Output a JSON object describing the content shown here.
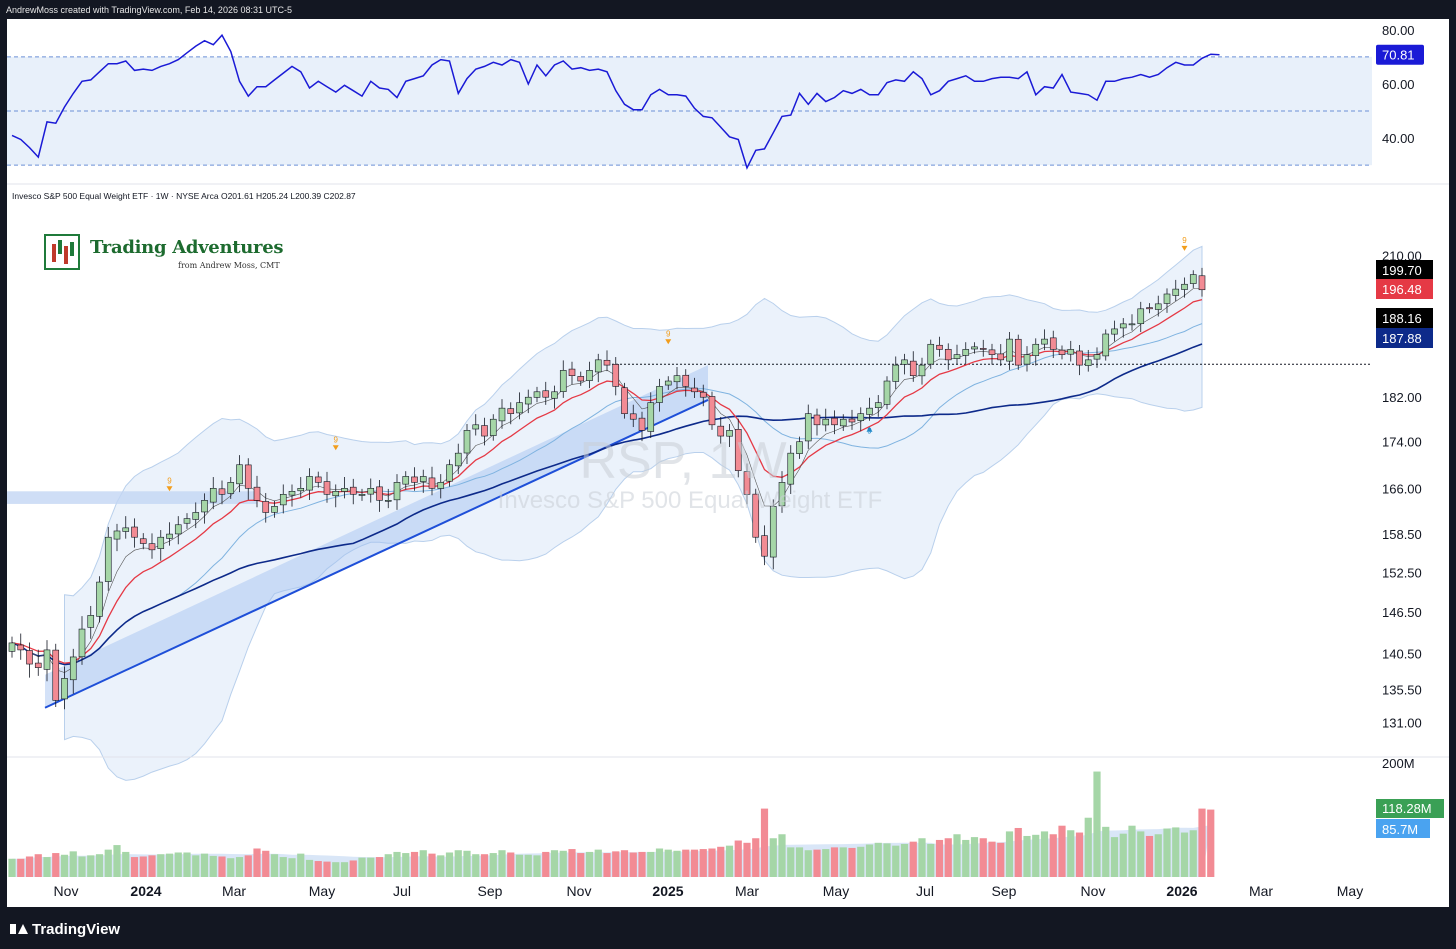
{
  "header": {
    "credit": "AndrewMoss created with TradingView.com, Feb 14, 2026 08:31 UTC-5"
  },
  "legend": {
    "symbol_line": "Invesco S&P 500 Equal Weight ETF · 1W · NYSE Arca  O201.61  H205.24  L200.39  C202.87"
  },
  "watermark": {
    "ticker": "RSP, 1W",
    "name": "Invesco S&P 500 Equal Weight ETF"
  },
  "brand": {
    "name": "Trading Adventures",
    "sub": "from Andrew Moss, CMT"
  },
  "footer": {
    "logo": "TradingView"
  },
  "colors": {
    "up": "#a5d6a7",
    "down": "#f28b94",
    "rsi": "#1a1ad6",
    "ma_red": "#e53945",
    "ma_navy": "#0d2a8a",
    "ma_light": "#7fb3e0",
    "band": "#dbe8f7",
    "trend": "#1e4fd8"
  },
  "chart_data": [
    {
      "id": "rsi",
      "type": "line",
      "y_ticks": [
        "80.00",
        "60.00",
        "40.00"
      ],
      "ylim": [
        26,
        84
      ],
      "last_value_label": "70.81",
      "levels": [
        70,
        50,
        30
      ],
      "series": [
        {
          "values": [
            41,
            39.5,
            36.5,
            33,
            46,
            45.5,
            51.5,
            56.5,
            61,
            61.5,
            64.5,
            67.5,
            67.5,
            68.5,
            65,
            65.5,
            65,
            66.5,
            67.5,
            69,
            71.5,
            74,
            76,
            74.5,
            78,
            72,
            61,
            55.5,
            59,
            59,
            61.5,
            64,
            66.5,
            64.5,
            58.5,
            61,
            59,
            57,
            59.5,
            57.5,
            55.5,
            61,
            58.5,
            58,
            55,
            61,
            62,
            63,
            67,
            69,
            68.5,
            56.5,
            62,
            65.5,
            66.5,
            68,
            67,
            69,
            68,
            60,
            67,
            63,
            67,
            68.5,
            65.5,
            66,
            65,
            65.5,
            64.5,
            57.5,
            52.5,
            50.5,
            50.5,
            56,
            58,
            56,
            56,
            55.5,
            51,
            48,
            47.5,
            44,
            40.5,
            39.5,
            29,
            35.5,
            36,
            42,
            48,
            48.5,
            56.5,
            52.5,
            56.5,
            53.5,
            55,
            57.5,
            56.5,
            58,
            56,
            56,
            60.5,
            61.5,
            61,
            64.5,
            62,
            56,
            57.5,
            61,
            62,
            63,
            61,
            61,
            62,
            62.5,
            62.5,
            62,
            64.5,
            56,
            59,
            58.5,
            63.5,
            57,
            56.5,
            56,
            54,
            61,
            61,
            62,
            62.5,
            63.5,
            62.5,
            63.5,
            66,
            68,
            67,
            67,
            69.5,
            71,
            70.81
          ]
        }
      ]
    },
    {
      "id": "price",
      "type": "candlestick",
      "y_ticks": [
        "210.00",
        "199.70",
        "196.48",
        "188.16",
        "187.88",
        "182.00",
        "174.00",
        "166.00",
        "158.50",
        "152.50",
        "146.50",
        "140.50",
        "135.50",
        "131.00"
      ],
      "tick_values": [
        210,
        182,
        174,
        166,
        158.5,
        152.5,
        146.5,
        140.5,
        135.5,
        131
      ],
      "log_scale": true,
      "ylim": [
        126.8,
        221
      ],
      "reference_line": 188.16,
      "price_labels": [
        {
          "text": "199.70",
          "bg": "#000000"
        },
        {
          "text": "196.48",
          "bg": "#e53945"
        },
        {
          "text": "188.16",
          "bg": "#000000"
        },
        {
          "text": "187.88",
          "bg": "#0d2a8a"
        }
      ],
      "closes": [
        142,
        141,
        139,
        138.5,
        141,
        134,
        137,
        140,
        144,
        146,
        151,
        158,
        159,
        159.5,
        158,
        157,
        156,
        158,
        158.5,
        160,
        161,
        162,
        164,
        166,
        165,
        167,
        170,
        166,
        164,
        162,
        163,
        165,
        165.5,
        166,
        168,
        167,
        165,
        165.5,
        166,
        165,
        165,
        166,
        164,
        164,
        167,
        168,
        167,
        168,
        166,
        167,
        170,
        172,
        176,
        177,
        175,
        178,
        180,
        179,
        181,
        182,
        183,
        182,
        183,
        187,
        186,
        185,
        187,
        189,
        188,
        184,
        179,
        178,
        176,
        181,
        184,
        185,
        186,
        184,
        183,
        182,
        177,
        175,
        176,
        169,
        165,
        158,
        155,
        163,
        167,
        172,
        174,
        179,
        177,
        178,
        177,
        178,
        177.5,
        179,
        180,
        181,
        185,
        188,
        189,
        186,
        188,
        192,
        191,
        189,
        190,
        191,
        191.5,
        191,
        190,
        189,
        193,
        188,
        190,
        192,
        193,
        191,
        190,
        191,
        188,
        189,
        190,
        194,
        195,
        196,
        196,
        199,
        199,
        200,
        202,
        203,
        204,
        206,
        202.87
      ],
      "labels_9": [
        {
          "bar": 18,
          "dir": "down",
          "color": "#f29d1b"
        },
        {
          "bar": 37,
          "dir": "down",
          "color": "#f29d1b"
        },
        {
          "bar": 75,
          "dir": "down",
          "color": "#f29d1b"
        },
        {
          "bar": 98,
          "dir": "up",
          "color": "#1e88c8"
        },
        {
          "bar": 134,
          "dir": "down",
          "color": "#f29d1b"
        }
      ]
    },
    {
      "id": "volume",
      "type": "bar",
      "y_ticks": [
        "200M"
      ],
      "ylim": [
        0,
        200
      ],
      "last_value_label": "118.28M",
      "avg_label": "85.7M",
      "values": [
        32,
        32,
        36,
        40,
        35,
        42,
        39,
        45,
        36,
        38,
        40,
        48,
        56,
        44,
        35,
        36,
        38,
        40,
        41,
        43,
        43,
        38,
        41,
        37,
        36,
        33,
        35,
        38,
        50,
        46,
        40,
        35,
        33,
        41,
        30,
        28,
        27,
        26,
        26,
        29,
        34,
        34,
        35,
        40,
        44,
        42,
        44,
        47,
        41,
        38,
        43,
        47,
        46,
        40,
        40,
        42,
        47,
        43,
        39,
        39,
        38,
        44,
        47,
        46,
        49,
        42,
        44,
        48,
        42,
        45,
        47,
        43,
        44,
        44,
        50,
        48,
        46,
        48,
        48,
        49,
        50,
        53,
        55,
        64,
        60,
        68,
        120,
        68,
        75,
        52,
        52,
        47,
        48,
        49,
        52,
        52,
        51,
        53,
        57,
        60,
        59,
        55,
        58,
        62,
        68,
        58,
        65,
        68,
        75,
        65,
        70,
        68,
        62,
        60,
        80,
        86,
        72,
        74,
        80,
        75,
        90,
        82,
        78,
        104,
        185,
        88,
        70,
        76,
        90,
        80,
        72,
        75,
        85,
        87,
        78,
        82,
        120,
        118.28
      ]
    },
    {
      "id": "time_axis",
      "type": "axis",
      "x_tick_labels": [
        "Nov",
        "2024",
        "Mar",
        "May",
        "Jul",
        "Sep",
        "Nov",
        "2025",
        "Mar",
        "May",
        "Jul",
        "Sep",
        "Nov",
        "2026",
        "Mar",
        "May"
      ],
      "bold_labels": [
        "2024",
        "2025",
        "2026"
      ]
    }
  ]
}
